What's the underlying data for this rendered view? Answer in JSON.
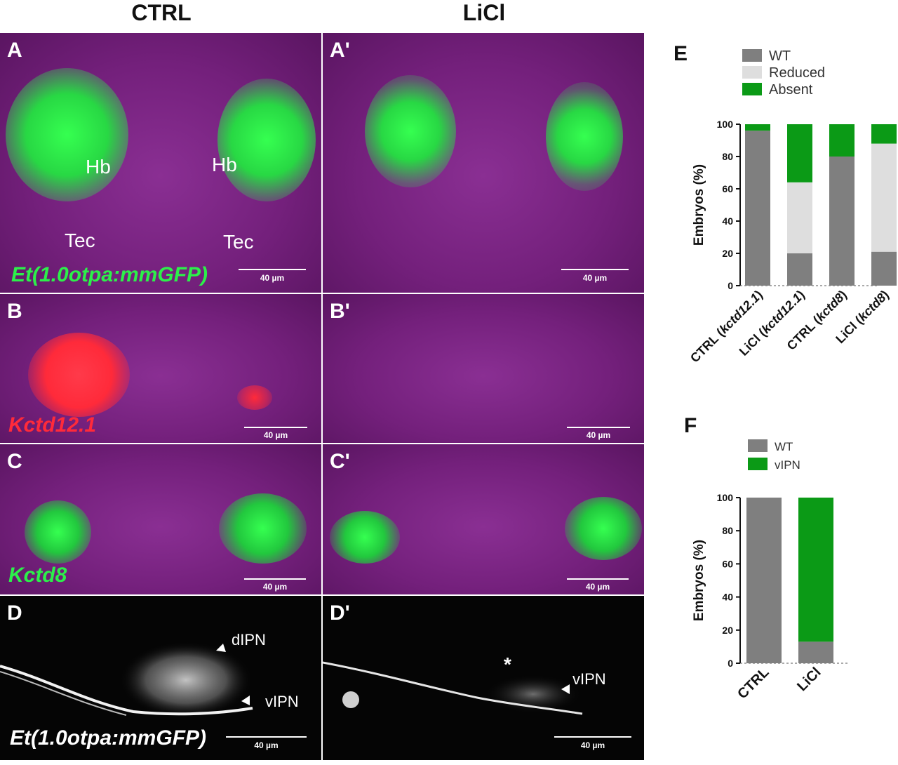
{
  "headers": {
    "ctrl": "CTRL",
    "licl": "LiCl"
  },
  "panels": {
    "A": {
      "label": "A",
      "hb1": "Hb",
      "hb2": "Hb",
      "tec1": "Tec",
      "tec2": "Tec",
      "stain": "Et(1.0otpa:mmGFP)",
      "scale": "40 µm"
    },
    "A2": {
      "label": "A'",
      "scale": "40 µm"
    },
    "B": {
      "label": "B",
      "stain": "Kctd12.1",
      "scale": "40 µm"
    },
    "B2": {
      "label": "B'",
      "scale": "40 µm"
    },
    "C": {
      "label": "C",
      "stain": "Kctd8",
      "scale": "40 µm"
    },
    "C2": {
      "label": "C'",
      "scale": "40 µm"
    },
    "D": {
      "label": "D",
      "dipn": "dIPN",
      "vipn": "vIPN",
      "stain": "Et(1.0otpa:mmGFP)",
      "scale": "40 µm"
    },
    "D2": {
      "label": "D'",
      "vipn": "vIPN",
      "star": "*",
      "scale": "40 µm"
    }
  },
  "colors": {
    "wt": "#7f7f7f",
    "reduced": "#dedede",
    "absent": "#0b9a16",
    "gfp": "#2cf04a",
    "red": "#ff2a3a",
    "magenta": "#7a2182"
  },
  "chart_data": [
    {
      "panel": "E",
      "type": "bar",
      "stacked": true,
      "ylabel": "Embryos (%)",
      "ylim": [
        0,
        100
      ],
      "yticks": [
        0,
        20,
        40,
        60,
        80,
        100
      ],
      "categories": [
        "CTRL (kctd12.1)",
        "LiCl (kctd12.1)",
        "CTRL (kctd8)",
        "LiCl (kctd8)"
      ],
      "categories_prefix": [
        "CTRL",
        "LiCl",
        "CTRL",
        "LiCl"
      ],
      "categories_gene": [
        "kctd12.1",
        "kctd12.1",
        "kctd8",
        "kctd8"
      ],
      "legend_placement": "top",
      "series": [
        {
          "name": "WT",
          "color": "#7f7f7f",
          "values": [
            96,
            20,
            80,
            21
          ]
        },
        {
          "name": "Reduced",
          "color": "#dedede",
          "values": [
            0,
            44,
            0,
            67
          ]
        },
        {
          "name": "Absent",
          "color": "#0b9a16",
          "values": [
            4,
            36,
            20,
            12
          ]
        }
      ]
    },
    {
      "panel": "F",
      "type": "bar",
      "stacked": true,
      "ylabel": "Embryos (%)",
      "ylim": [
        0,
        100
      ],
      "yticks": [
        0,
        20,
        40,
        60,
        80,
        100
      ],
      "categories": [
        "CTRL",
        "LiCl"
      ],
      "legend_placement": "top",
      "series": [
        {
          "name": "WT",
          "color": "#7f7f7f",
          "values": [
            100,
            13
          ]
        },
        {
          "name": "vIPN",
          "color": "#0b9a16",
          "values": [
            0,
            87
          ]
        }
      ]
    }
  ]
}
